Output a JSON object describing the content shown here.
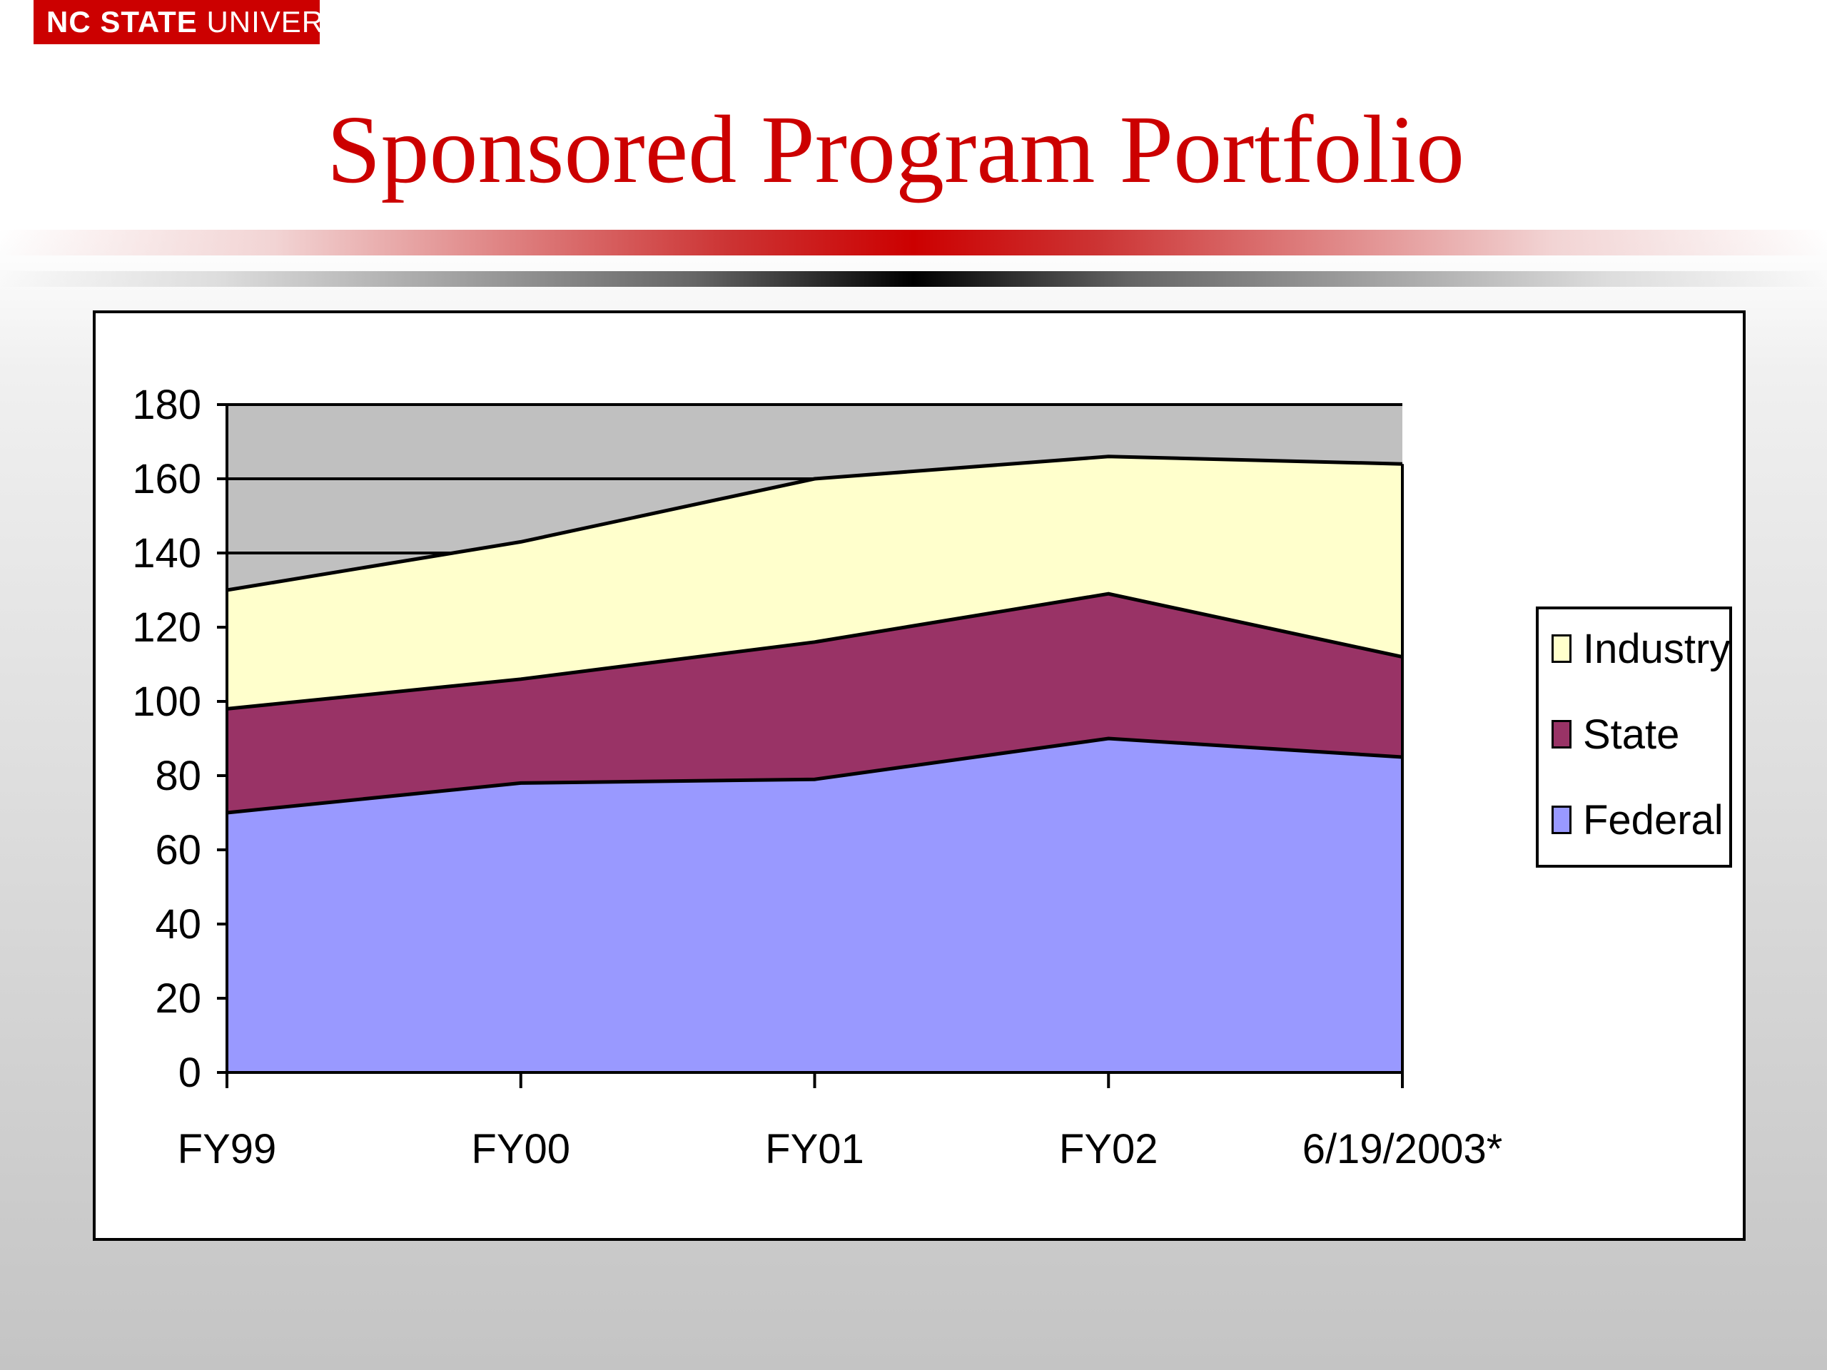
{
  "header": {
    "logo_bold": "NC STATE",
    "logo_regular": "UNIVERSITY",
    "title": "Sponsored Program Portfolio"
  },
  "colors": {
    "brand_red": "#cc0000",
    "plot_background": "#c0c0c0",
    "federal": "#9999ff",
    "state": "#993366",
    "industry": "#ffffcc"
  },
  "chart_data": {
    "type": "area",
    "stacked": true,
    "title": "",
    "xlabel": "",
    "ylabel": "",
    "categories": [
      "FY99",
      "FY00",
      "FY01",
      "FY02",
      "6/19/2003*"
    ],
    "ylim": [
      0,
      180
    ],
    "yticks": [
      0,
      20,
      40,
      60,
      80,
      100,
      120,
      140,
      160,
      180
    ],
    "grid": true,
    "legend_position": "right",
    "series": [
      {
        "name": "Federal",
        "values": [
          70,
          78,
          79,
          90,
          85
        ],
        "color": "#9999ff"
      },
      {
        "name": "State",
        "values": [
          28,
          28,
          37,
          39,
          27
        ],
        "color": "#993366"
      },
      {
        "name": "Industry",
        "values": [
          32,
          37,
          44,
          37,
          52
        ],
        "color": "#ffffcc"
      }
    ],
    "legend": [
      "Industry",
      "State",
      "Federal"
    ]
  }
}
